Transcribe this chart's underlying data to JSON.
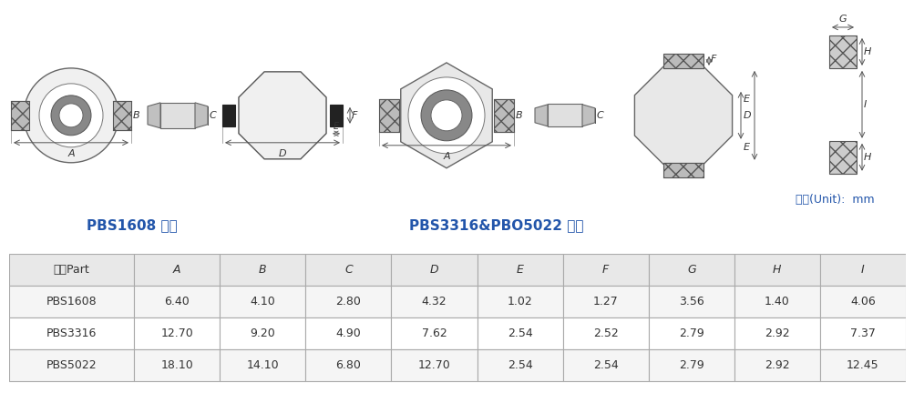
{
  "title_label1": "PBS1608 系列",
  "title_label2": "PBS3316&PBO5022 系列",
  "unit_label": "單位(Unit):  mm",
  "table_headers": [
    "型號Part",
    "A",
    "B",
    "C",
    "D",
    "E",
    "F",
    "G",
    "H",
    "I"
  ],
  "table_rows": [
    [
      "PBS1608",
      "6.40",
      "4.10",
      "2.80",
      "4.32",
      "1.02",
      "1.27",
      "3.56",
      "1.40",
      "4.06"
    ],
    [
      "PBS3316",
      "12.70",
      "9.20",
      "4.90",
      "7.62",
      "2.54",
      "2.52",
      "2.79",
      "2.92",
      "7.37"
    ],
    [
      "PBS5022",
      "18.10",
      "14.10",
      "6.80",
      "12.70",
      "2.54",
      "2.54",
      "2.79",
      "2.92",
      "12.45"
    ]
  ],
  "header_bg": "#e8e8e8",
  "row_bg_odd": "#f5f5f5",
  "row_bg_even": "#ffffff",
  "border_color": "#aaaaaa",
  "text_color": "#333333",
  "blue_text": "#2255aa"
}
